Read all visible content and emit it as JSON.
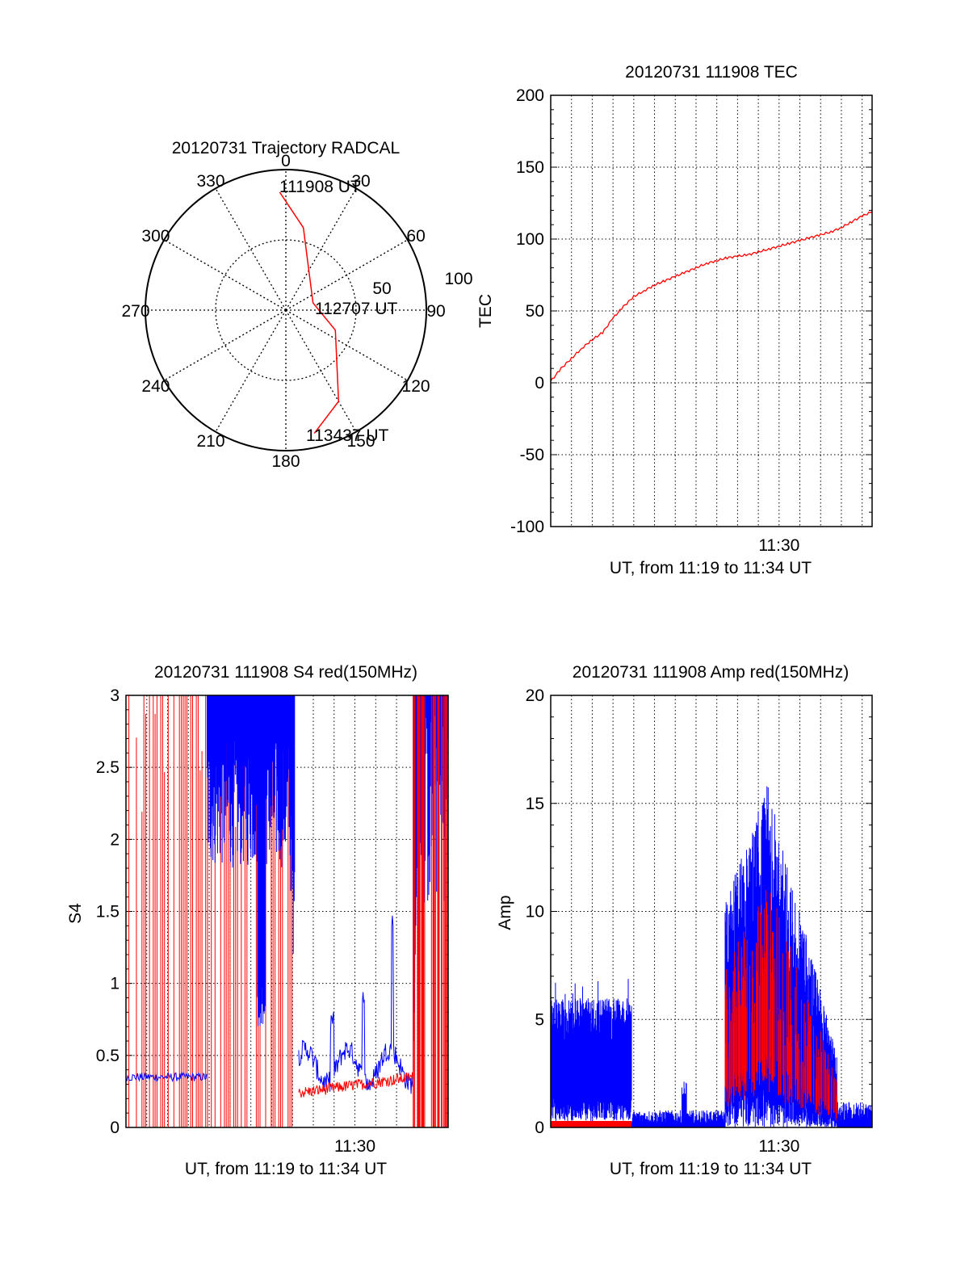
{
  "chart_data": [
    {
      "type": "polar",
      "title": "20120731 Trajectory RADCAL",
      "angle_labels": [
        "0",
        "30",
        "60",
        "90",
        "120",
        "150",
        "180",
        "210",
        "240",
        "270",
        "300",
        "330"
      ],
      "radius_labels": [
        "50",
        "100"
      ],
      "annotations": [
        "111908 UT",
        "112707 UT",
        "113437 UT"
      ],
      "colors": {
        "trajectory": "#ff0000"
      },
      "trajectory": [
        {
          "az": 357,
          "r": 84
        },
        {
          "az": 12,
          "r": 60
        },
        {
          "az": 75,
          "r": 20
        },
        {
          "az": 112,
          "r": 38
        },
        {
          "az": 150,
          "r": 75
        },
        {
          "az": 167,
          "r": 90
        }
      ],
      "rlim": [
        0,
        100
      ]
    },
    {
      "type": "line",
      "title": "20120731 111908 TEC",
      "xlabel": "UT, from 11:19 to 11:34 UT",
      "ylabel": "TEC",
      "x_tick_label": "11:30",
      "x_tick_value": 11.0,
      "xlim": [
        0,
        15.48
      ],
      "ylim": [
        -100,
        200
      ],
      "yticks": [
        "200",
        "150",
        "100",
        "50",
        "0",
        "-50",
        "-100"
      ],
      "grid": true,
      "series": [
        {
          "color": "#ff0000",
          "x": [
            0,
            0.5,
            1,
            1.5,
            2,
            2.5,
            3,
            3.5,
            4,
            4.5,
            5,
            5.5,
            6,
            6.5,
            7,
            7.5,
            8,
            8.5,
            9,
            9.5,
            10,
            10.5,
            11,
            11.5,
            12,
            12.5,
            13,
            13.5,
            14,
            14.5,
            15,
            15.48
          ],
          "y": [
            1,
            10,
            17,
            24,
            30,
            35,
            45,
            53,
            60,
            64,
            68,
            71,
            74,
            77,
            80,
            83,
            85,
            87,
            88,
            89,
            91,
            93,
            95,
            97,
            99,
            101,
            103,
            105,
            108,
            112,
            116,
            119
          ]
        }
      ]
    },
    {
      "type": "line",
      "title": "20120731 111908 S4 red(150MHz)",
      "xlabel": "UT, from 11:19 to 11:34 UT",
      "ylabel": "S4",
      "x_tick_label": "11:30",
      "x_tick_value": 11.0,
      "xlim": [
        0,
        15.48
      ],
      "ylim": [
        0,
        3
      ],
      "yticks": [
        "3",
        "2.5",
        "2",
        "1.5",
        "1",
        "0.5",
        "0"
      ],
      "grid": true,
      "colors": {
        "red": "#ff0000",
        "blue": "#0000ff"
      }
    },
    {
      "type": "line",
      "title": "20120731 111908 Amp red(150MHz)",
      "xlabel": "UT, from 11:19 to 11:34 UT",
      "ylabel": "Amp",
      "x_tick_label": "11:30",
      "x_tick_value": 11.0,
      "xlim": [
        0,
        15.48
      ],
      "ylim": [
        0,
        20
      ],
      "yticks": [
        "20",
        "15",
        "10",
        "5",
        "0"
      ],
      "grid": true,
      "colors": {
        "red": "#ff0000",
        "blue": "#0000ff"
      }
    }
  ]
}
